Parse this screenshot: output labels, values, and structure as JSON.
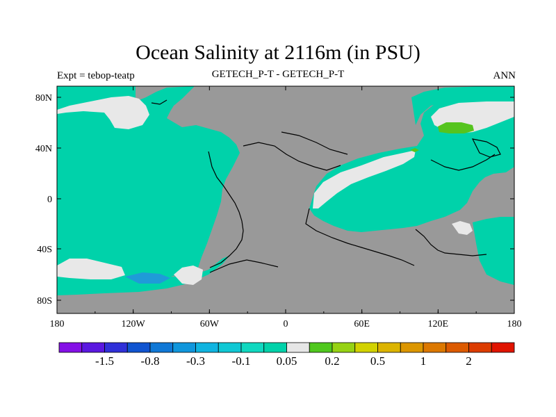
{
  "header": {
    "title": "Ocean Salinity at 2116m (in PSU)",
    "left": "Expt = tebop-teatp",
    "center": "GETECH_P-T - GETECH_P-T",
    "right": "ANN"
  },
  "map": {
    "lon_ticks": [
      "180",
      "120W",
      "60W",
      "0",
      "60E",
      "120E",
      "180"
    ],
    "lat_ticks": [
      "80N",
      "40N",
      "0",
      "40S",
      "80S"
    ],
    "colors": {
      "land": "#999999",
      "ocean_small_negative": "#00d2aa",
      "near_zero": "#e8e8e8",
      "small_positive": "#55c41e",
      "moderate_negative": "#1f9bd8"
    }
  },
  "colorbar": {
    "colors": [
      "#8410e6",
      "#5a18e0",
      "#3030d8",
      "#1054d0",
      "#1078d6",
      "#1096dc",
      "#10b4e0",
      "#10c8d4",
      "#10d8c0",
      "#00d2aa",
      "#e6e6e6",
      "#50c81e",
      "#96d214",
      "#d2d200",
      "#dcb400",
      "#dc9600",
      "#dc7800",
      "#dc5a00",
      "#dc3c00",
      "#e01400"
    ],
    "labels": [
      "-1.5",
      "-0.8",
      "-0.3",
      "-0.1",
      "0.05",
      "0.2",
      "0.5",
      "1",
      "2"
    ]
  }
}
